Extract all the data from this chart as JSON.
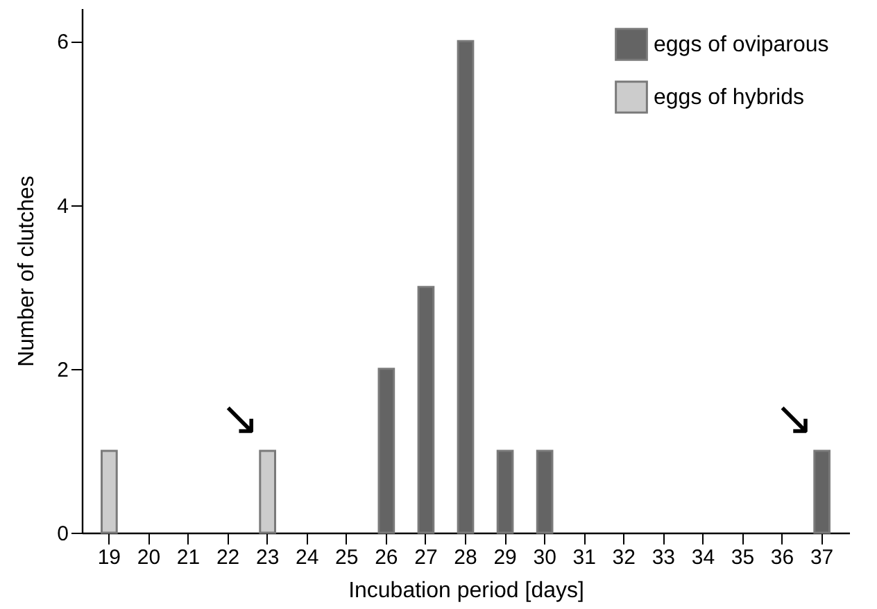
{
  "chart_data": {
    "type": "bar",
    "xlabel": "Incubation period [days]",
    "ylabel": "Number of clutches",
    "categories": [
      "19",
      "20",
      "21",
      "22",
      "23",
      "24",
      "25",
      "26",
      "27",
      "28",
      "29",
      "30",
      "31",
      "32",
      "33",
      "34",
      "35",
      "36",
      "37"
    ],
    "series": [
      {
        "name": "eggs of oviparous",
        "color": "#646464",
        "values": [
          null,
          null,
          null,
          null,
          null,
          null,
          null,
          2,
          3,
          6,
          1,
          1,
          null,
          null,
          null,
          null,
          null,
          null,
          1
        ]
      },
      {
        "name": "eggs of hybrids",
        "color": "#cccccc",
        "values": [
          1,
          null,
          null,
          null,
          1,
          null,
          null,
          null,
          null,
          null,
          null,
          null,
          null,
          null,
          null,
          null,
          null,
          null,
          null
        ]
      }
    ],
    "ylim": [
      0,
      6.4
    ],
    "yticks": [
      0,
      2,
      4,
      6
    ],
    "grid": false,
    "legend": "top right",
    "annotations": [
      {
        "text": "↘",
        "x": "23",
        "y": 1
      },
      {
        "text": "↘",
        "x": "37",
        "y": 1
      }
    ]
  }
}
